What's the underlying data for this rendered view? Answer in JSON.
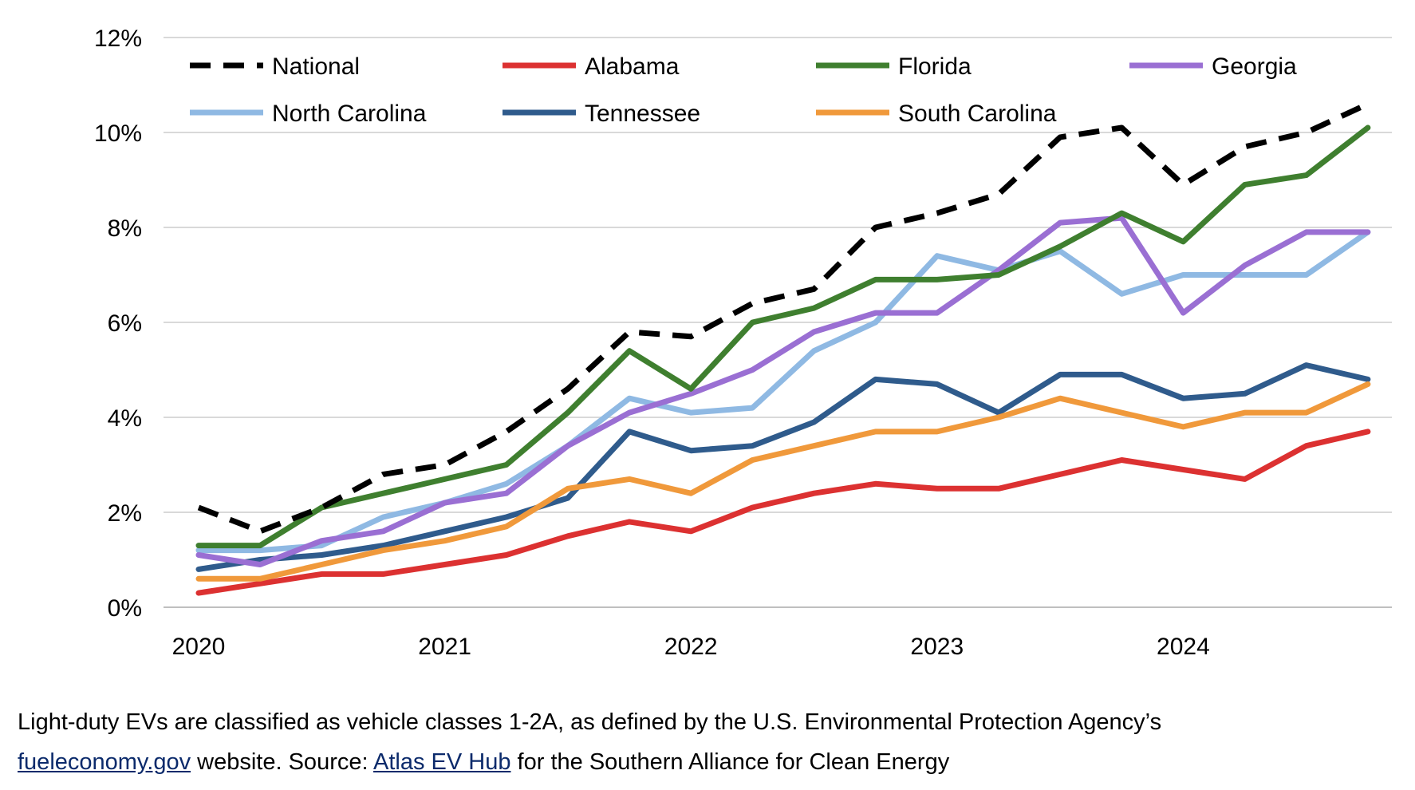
{
  "chart_data": {
    "type": "line",
    "title": "",
    "xlabel": "",
    "ylabel": "",
    "ylim": [
      0,
      12
    ],
    "yticks": [
      "0%",
      "2%",
      "4%",
      "6%",
      "8%",
      "10%",
      "12%"
    ],
    "ytick_values": [
      0,
      2,
      4,
      6,
      8,
      10,
      12
    ],
    "xticks": [
      "2020",
      "2021",
      "2022",
      "2023",
      "2024"
    ],
    "xtick_positions": [
      0,
      4,
      8,
      12,
      16
    ],
    "x": [
      0,
      1,
      2,
      3,
      4,
      5,
      6,
      7,
      8,
      9,
      10,
      11,
      12,
      13,
      14,
      15,
      16,
      17,
      18,
      19
    ],
    "grid": "horizontal",
    "legend": "top",
    "series": [
      {
        "name": "National",
        "color": "#000000",
        "dash": true,
        "values": [
          2.1,
          1.6,
          2.1,
          2.8,
          3.0,
          3.7,
          4.6,
          5.8,
          5.7,
          6.4,
          6.7,
          8.0,
          8.3,
          8.7,
          9.9,
          10.1,
          8.9,
          9.7,
          10.0,
          10.6
        ]
      },
      {
        "name": "Alabama",
        "color": "#dc3131",
        "dash": false,
        "values": [
          0.3,
          0.5,
          0.7,
          0.7,
          0.9,
          1.1,
          1.5,
          1.8,
          1.6,
          2.1,
          2.4,
          2.6,
          2.5,
          2.5,
          2.8,
          3.1,
          2.9,
          2.7,
          3.4,
          3.7
        ]
      },
      {
        "name": "Florida",
        "color": "#3f7f2f",
        "dash": false,
        "values": [
          1.3,
          1.3,
          2.1,
          2.4,
          2.7,
          3.0,
          4.1,
          5.4,
          4.6,
          6.0,
          6.3,
          6.9,
          6.9,
          7.0,
          7.6,
          8.3,
          7.7,
          8.9,
          9.1,
          10.1
        ]
      },
      {
        "name": "Georgia",
        "color": "#9a6fd3",
        "dash": false,
        "values": [
          1.1,
          0.9,
          1.4,
          1.6,
          2.2,
          2.4,
          3.4,
          4.1,
          4.5,
          5.0,
          5.8,
          6.2,
          6.2,
          7.1,
          8.1,
          8.2,
          6.2,
          7.2,
          7.9,
          7.9
        ]
      },
      {
        "name": "North Carolina",
        "color": "#8fb9e3",
        "dash": false,
        "values": [
          1.2,
          1.2,
          1.3,
          1.9,
          2.2,
          2.6,
          3.4,
          4.4,
          4.1,
          4.2,
          5.4,
          6.0,
          7.4,
          7.1,
          7.5,
          6.6,
          7.0,
          7.0,
          7.0,
          7.9
        ]
      },
      {
        "name": "Tennessee",
        "color": "#2f5b8c",
        "dash": false,
        "values": [
          0.8,
          1.0,
          1.1,
          1.3,
          1.6,
          1.9,
          2.3,
          3.7,
          3.3,
          3.4,
          3.9,
          4.8,
          4.7,
          4.1,
          4.9,
          4.9,
          4.4,
          4.5,
          5.1,
          4.8
        ]
      },
      {
        "name": "South Carolina",
        "color": "#f0993b",
        "dash": false,
        "values": [
          0.6,
          0.6,
          0.9,
          1.2,
          1.4,
          1.7,
          2.5,
          2.7,
          2.4,
          3.1,
          3.4,
          3.7,
          3.7,
          4.0,
          4.4,
          4.1,
          3.8,
          4.1,
          4.1,
          4.7
        ]
      }
    ]
  },
  "caption": {
    "line1": "Light-duty EVs are classified as vehicle classes 1-2A, as defined by the U.S. Environmental Protection Agency’s",
    "link1": "fueleconomy.gov",
    "text2": " website. Source: ",
    "link2": "Atlas EV Hub",
    "text3": " for the Southern Alliance for Clean Energy"
  }
}
